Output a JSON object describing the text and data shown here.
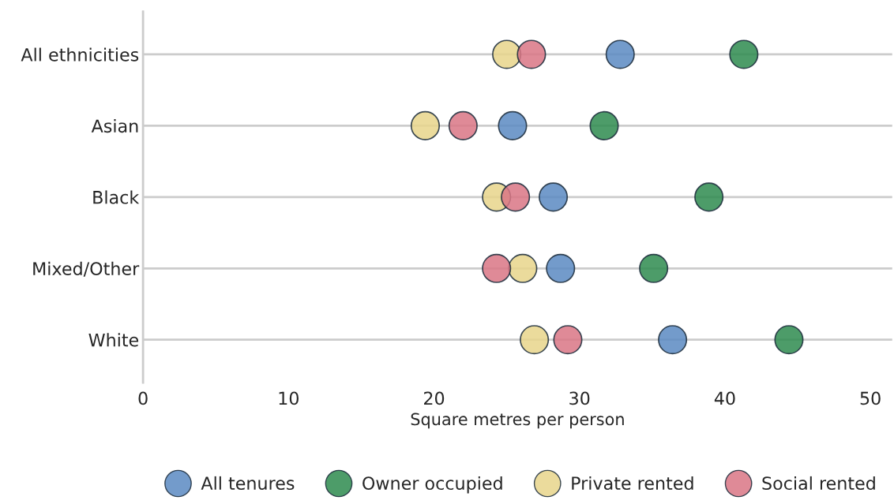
{
  "chart_data": {
    "type": "scatter",
    "xlabel": "Square metres per person",
    "categories": [
      "All ethnicities",
      "Asian",
      "Black",
      "Mixed/Other",
      "White"
    ],
    "orientation": "horizontal",
    "series": [
      {
        "name": "All tenures",
        "color": "#5b8ac2",
        "values": [
          32.8,
          25.4,
          28.2,
          28.7,
          36.4
        ]
      },
      {
        "name": "Owner occupied",
        "color": "#2e8b4f",
        "values": [
          41.3,
          31.7,
          38.9,
          35.1,
          44.4
        ]
      },
      {
        "name": "Private rented",
        "color": "#e8d58b",
        "values": [
          25.0,
          19.4,
          24.3,
          26.1,
          26.9
        ]
      },
      {
        "name": "Social rented",
        "color": "#d97585",
        "values": [
          26.7,
          22.0,
          25.6,
          24.3,
          29.2
        ]
      }
    ],
    "xlim": [
      0,
      51.5
    ],
    "xticks": [
      0,
      10,
      20,
      30,
      40,
      50
    ],
    "grid": "y",
    "legend": "bottom",
    "marker": "circle"
  }
}
